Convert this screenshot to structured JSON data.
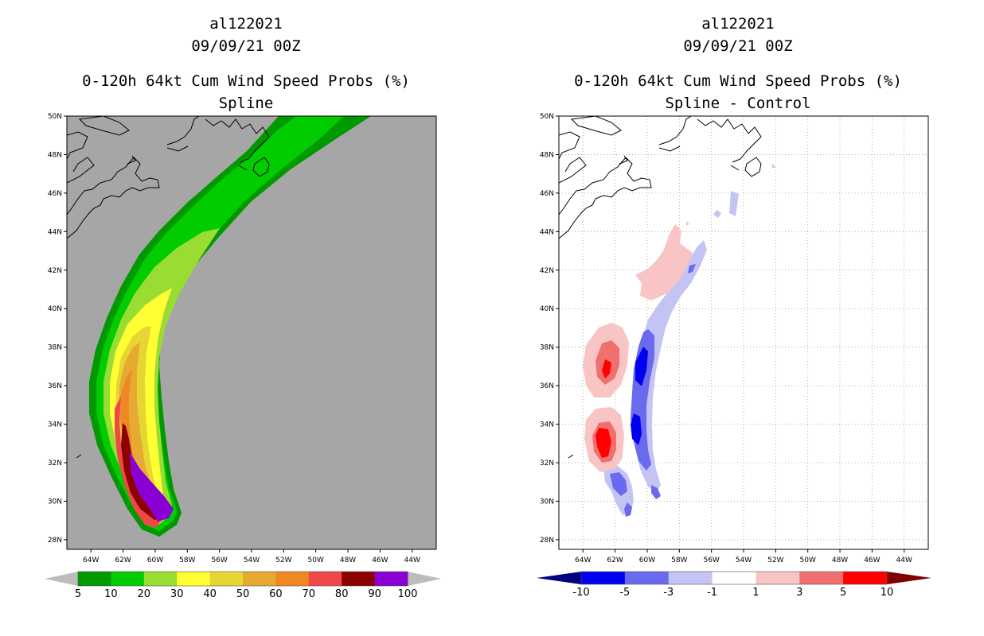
{
  "chart_data": [
    {
      "type": "filled-contour-map",
      "storm_id": "al122021",
      "datetime": "09/09/21 00Z",
      "title": "0-120h 64kt Cum Wind Speed Probs (%)",
      "subtitle": "Spline",
      "background_color": "#a6a6a6",
      "lon_ticks": [
        "64W",
        "62W",
        "60W",
        "58W",
        "56W",
        "54W",
        "52W",
        "50W",
        "48W",
        "46W",
        "44W"
      ],
      "lat_ticks": [
        "50N",
        "48N",
        "46N",
        "44N",
        "42N",
        "40N",
        "38N",
        "36N",
        "34N",
        "32N",
        "30N",
        "28N"
      ],
      "lon_range": [
        -65.5,
        -42.5
      ],
      "lat_range": [
        27.5,
        50
      ],
      "grid": false,
      "colorbar": {
        "labels": [
          "5",
          "10",
          "20",
          "30",
          "40",
          "50",
          "60",
          "70",
          "80",
          "90",
          "100"
        ],
        "colors": [
          "#009900",
          "#00cc00",
          "#99dd33",
          "#ffff33",
          "#e6d633",
          "#e6aa33",
          "#ee8822",
          "#f04848",
          "#8c0000",
          "#8a00d4"
        ],
        "end_left": "#bcbcbc",
        "end_right": "#bcbcbc"
      },
      "contours": [
        {
          "level": 5,
          "color": "#009900"
        },
        {
          "level": 10,
          "color": "#00cc00"
        },
        {
          "level": 20,
          "color": "#99dd33"
        },
        {
          "level": 30,
          "color": "#ffff33"
        },
        {
          "level": 40,
          "color": "#e6d633"
        },
        {
          "level": 50,
          "color": "#e6aa33"
        },
        {
          "level": 60,
          "color": "#ee8822"
        },
        {
          "level": 70,
          "color": "#f04848"
        },
        {
          "level": 80,
          "color": "#8c0000"
        },
        {
          "level": 90,
          "color": "#8a00d4"
        }
      ]
    },
    {
      "type": "filled-contour-map",
      "storm_id": "al122021",
      "datetime": "09/09/21 00Z",
      "title": "0-120h 64kt Cum Wind Speed Probs (%)",
      "subtitle": "Spline - Control",
      "background_color": "#ffffff",
      "lon_ticks": [
        "64W",
        "62W",
        "60W",
        "58W",
        "56W",
        "54W",
        "52W",
        "50W",
        "48W",
        "46W",
        "44W"
      ],
      "lat_ticks": [
        "50N",
        "48N",
        "46N",
        "44N",
        "42N",
        "40N",
        "38N",
        "36N",
        "34N",
        "32N",
        "30N",
        "28N"
      ],
      "lon_range": [
        -65.5,
        -42.5
      ],
      "lat_range": [
        27.5,
        50
      ],
      "grid": true,
      "colorbar": {
        "labels": [
          "-10",
          "-5",
          "-3",
          "-1",
          "1",
          "3",
          "5",
          "10"
        ],
        "colors": [
          "#0000ee",
          "#6a6aee",
          "#c4c4f4",
          "#ffffff",
          "#f8c4c4",
          "#f07070",
          "#ff0000"
        ],
        "end_left": "#000080",
        "end_right": "#800000"
      },
      "contours": [
        {
          "level": -10,
          "color": "#0000ee"
        },
        {
          "level": -5,
          "color": "#6a6aee"
        },
        {
          "level": -3,
          "color": "#c4c4f4"
        },
        {
          "level": 3,
          "color": "#f8c4c4"
        },
        {
          "level": 5,
          "color": "#f07070"
        },
        {
          "level": 10,
          "color": "#ff0000"
        }
      ]
    }
  ]
}
